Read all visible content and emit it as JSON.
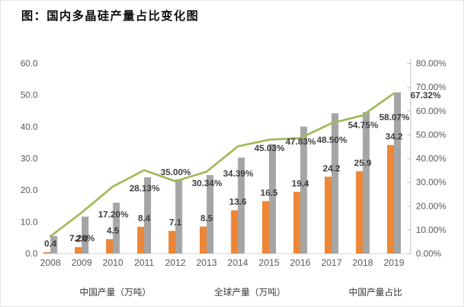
{
  "title": "图：国内多晶硅产量占比变化图",
  "chart_data": {
    "type": "bar",
    "subtype": "combo-bar-line-dual-axis",
    "title": "图：国内多晶硅产量占比变化图",
    "categories": [
      "2008",
      "2009",
      "2010",
      "2011",
      "2012",
      "2013",
      "2014",
      "2015",
      "2016",
      "2017",
      "2018",
      "2019"
    ],
    "series": [
      {
        "name": "中国产量（万吨）",
        "type": "bar",
        "axis": "left",
        "color": "#ED8637",
        "values": [
          0.4,
          2.0,
          4.5,
          8.4,
          7.1,
          8.5,
          13.6,
          16.5,
          19.4,
          24.2,
          25.9,
          34.2
        ],
        "value_labels": [
          "0.4",
          "2.0",
          "4.5",
          "8.4",
          "7.1",
          "8.5",
          "13.6",
          "16.5",
          "19.4",
          "24.2",
          "25.9",
          "34.2"
        ]
      },
      {
        "name": "全球产量（万吨）",
        "type": "bar",
        "axis": "left",
        "color": "#A5A5A5",
        "values": [
          5.5,
          11.6,
          16.0,
          24.0,
          23.4,
          24.7,
          30.2,
          34.5,
          40.0,
          44.2,
          44.6,
          50.8
        ],
        "value_labels": []
      },
      {
        "name": "中国产量占比",
        "type": "line",
        "axis": "right",
        "color": "#9FBB59",
        "values": [
          7.2,
          17.2,
          28.13,
          35.0,
          30.34,
          34.39,
          45.03,
          47.83,
          48.5,
          54.75,
          58.07,
          67.32
        ],
        "value_labels": [
          "7.20%",
          "17.20%",
          "28.13%",
          "35.00%",
          "30.34%",
          "34.39%",
          "45.03%",
          "47.83%",
          "48.50%",
          "54.75%",
          "58.07%",
          "67.32%"
        ]
      }
    ],
    "left_axis": {
      "min": 0,
      "max": 60,
      "step": 10,
      "labels": [
        "0.0",
        "10.0",
        "20.0",
        "30.0",
        "40.0",
        "50.0",
        "60.0"
      ]
    },
    "right_axis": {
      "min": 0,
      "max": 80,
      "step": 10,
      "labels": [
        "0.00%",
        "10.00%",
        "20.00%",
        "30.00%",
        "40.00%",
        "50.00%",
        "60.00%",
        "70.00%",
        "80.00%"
      ]
    },
    "grid": false,
    "legend_position": "bottom"
  }
}
